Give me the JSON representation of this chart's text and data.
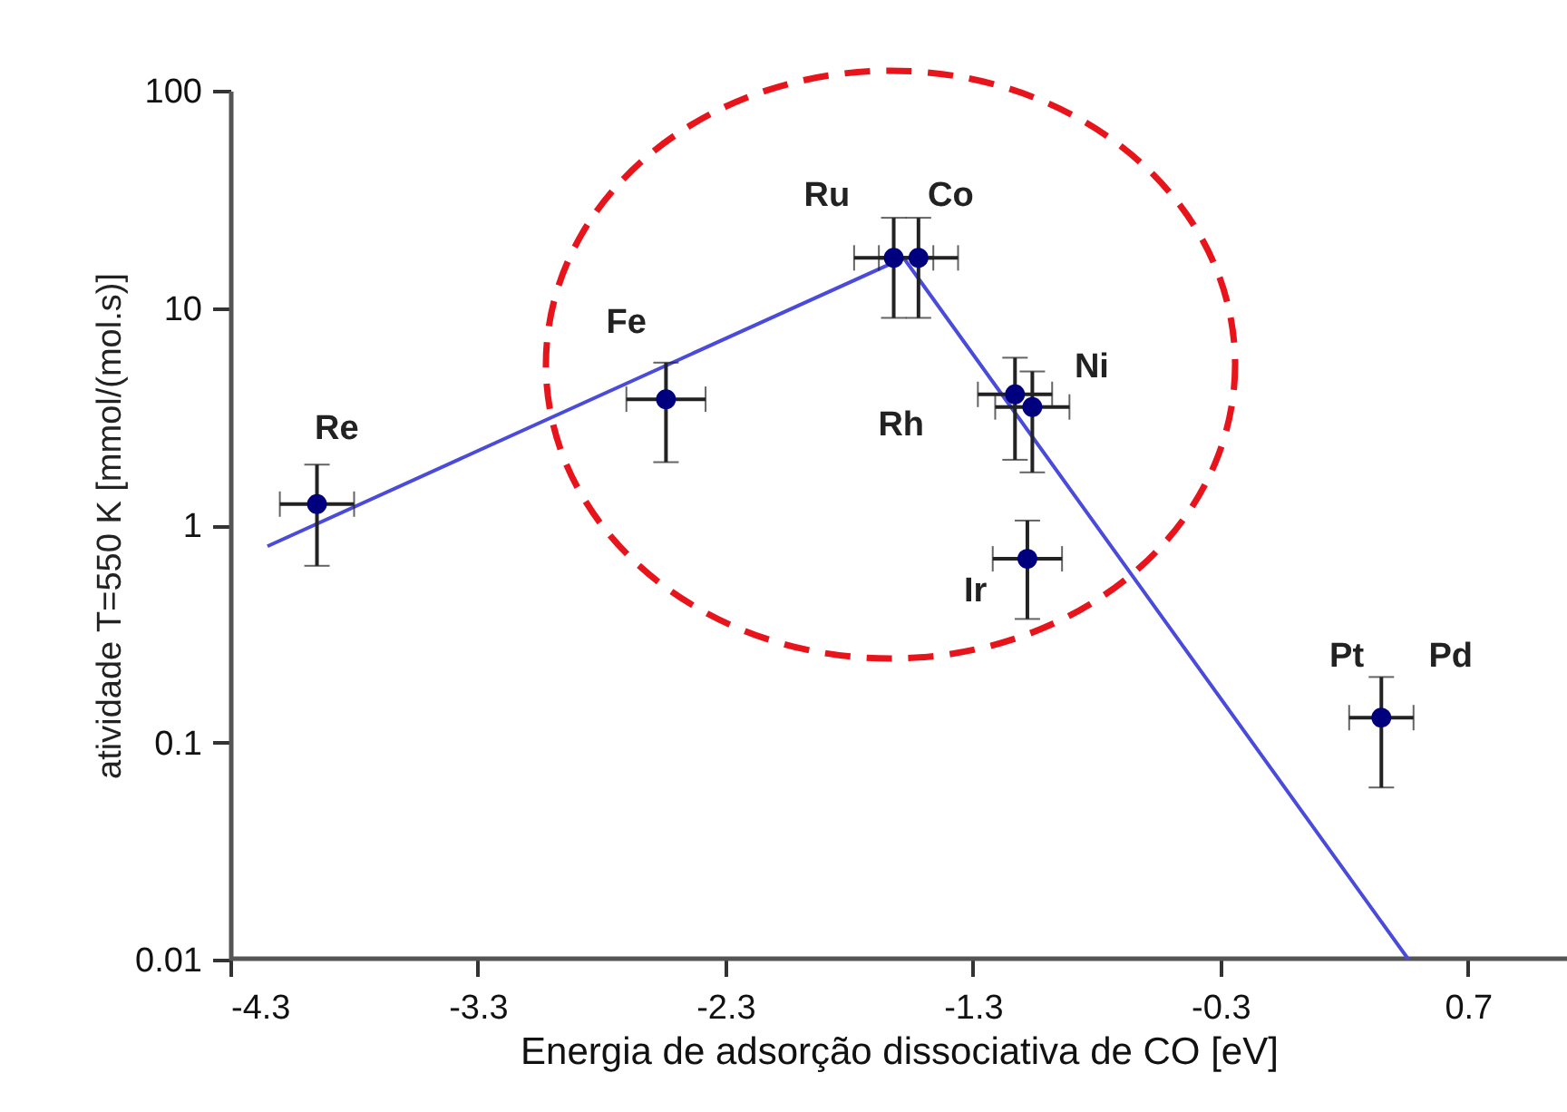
{
  "chart_data": {
    "type": "scatter",
    "xlabel": "Energia de adsorção dissociativa de CO [eV]",
    "ylabel": "atividade T=550 K [mmol/(mol.s)]",
    "log": "y",
    "grid": false,
    "marker": "circle",
    "xlim": [
      -4.3,
      1.1
    ],
    "xticks": [
      -4.3,
      -3.3,
      -2.3,
      -1.3,
      -0.3,
      0.7
    ],
    "ylim": [
      0.01,
      100
    ],
    "yticks": [
      0.01,
      0.1,
      1,
      10,
      100
    ],
    "series": [
      {
        "color": "#00007f",
        "x": [
          -3.95,
          -2.54,
          -1.62,
          -1.52,
          -1.13,
          -1.06,
          -1.08,
          0.35
        ],
        "values": [
          1.25,
          3.8,
          17,
          17,
          4.0,
          3.5,
          0.7,
          0.13
        ],
        "errors": [
          [
            0.65,
            1.9
          ],
          [
            1.95,
            5.6
          ],
          [
            9,
            26
          ],
          [
            9,
            26
          ],
          [
            2.0,
            5.9
          ],
          [
            1.75,
            5.1
          ],
          [
            0.37,
            1.05
          ],
          [
            0.062,
            0.2
          ]
        ],
        "xerrors": [
          0.15,
          0.16,
          0.16,
          0.16,
          0.15,
          0.15,
          0.14,
          0.13
        ]
      },
      {
        "type": "line",
        "color": "#4a4adb",
        "line_style": "solid",
        "marker": "none",
        "x": [
          -4.15,
          -1.58,
          0.46
        ],
        "values": [
          0.8,
          17,
          0.01
        ]
      }
    ],
    "annotations": [
      "Re",
      "Fe",
      "Ru",
      "Co",
      "Ni",
      "Rh",
      "Ir",
      "Pt",
      "Pd"
    ]
  }
}
